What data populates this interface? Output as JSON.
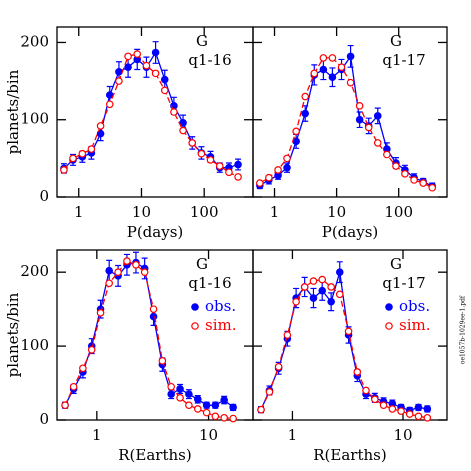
{
  "chart_data": [
    {
      "type": "line",
      "xlabel": "P(days)",
      "ylabel": "planets/bin",
      "annotations": [
        "G",
        "q1-16"
      ],
      "log_x": true,
      "xlim": [
        0.45,
        600
      ],
      "xticks": [
        1,
        10,
        100
      ],
      "ylim": [
        0,
        220
      ],
      "yticks": [
        0,
        100,
        200
      ],
      "ytick_labels": true,
      "legend": false,
      "x": [
        0.58,
        0.81,
        1.14,
        1.59,
        2.23,
        3.12,
        4.37,
        6.12,
        8.56,
        12.0,
        16.8,
        23.5,
        32.9,
        46.0,
        64.5,
        90.3,
        126,
        177,
        248,
        347
      ],
      "series": [
        {
          "color": "#0000ff",
          "marker": "filled",
          "dash": false,
          "values": [
            37,
            48,
            52,
            57,
            82,
            132,
            162,
            168,
            178,
            168,
            187,
            152,
            118,
            96,
            70,
            57,
            52,
            38,
            38,
            42
          ],
          "errors": [
            6,
            7,
            7,
            8,
            9,
            11,
            13,
            13,
            13,
            13,
            14,
            12,
            11,
            10,
            8,
            8,
            7,
            6,
            6,
            7
          ]
        },
        {
          "color": "#ff0000",
          "marker": "open",
          "dash": true,
          "values": [
            35,
            50,
            56,
            62,
            92,
            120,
            150,
            182,
            185,
            170,
            160,
            138,
            110,
            86,
            70,
            56,
            48,
            40,
            32,
            26
          ]
        }
      ]
    },
    {
      "type": "line",
      "xlabel": "P(days)",
      "annotations": [
        "G",
        "q1-17"
      ],
      "log_x": true,
      "xlim": [
        0.45,
        600
      ],
      "xticks": [
        1,
        10,
        100
      ],
      "ylim": [
        0,
        220
      ],
      "yticks": [
        0,
        100,
        200
      ],
      "ytick_labels": false,
      "legend": false,
      "x": [
        0.58,
        0.81,
        1.14,
        1.59,
        2.23,
        3.12,
        4.37,
        6.12,
        8.56,
        12.0,
        16.8,
        23.5,
        32.9,
        46.0,
        64.5,
        90.3,
        126,
        177,
        248,
        347
      ],
      "series": [
        {
          "color": "#0000ff",
          "marker": "filled",
          "dash": false,
          "values": [
            15,
            22,
            28,
            38,
            72,
            108,
            158,
            165,
            155,
            165,
            182,
            100,
            92,
            105,
            62,
            44,
            35,
            25,
            20,
            14
          ],
          "errors": [
            4,
            5,
            5,
            6,
            9,
            10,
            13,
            13,
            12,
            13,
            14,
            10,
            10,
            10,
            8,
            7,
            6,
            5,
            4,
            4
          ]
        },
        {
          "color": "#ff0000",
          "marker": "open",
          "dash": true,
          "values": [
            18,
            25,
            35,
            50,
            85,
            130,
            160,
            180,
            180,
            168,
            148,
            118,
            90,
            70,
            55,
            40,
            30,
            22,
            18,
            12
          ]
        }
      ]
    },
    {
      "type": "line",
      "xlabel": "R(Earths)",
      "ylabel": "planets/bin",
      "annotations": [
        "G",
        "q1-16"
      ],
      "log_x": true,
      "xlim": [
        0.44,
        25
      ],
      "xticks": [
        1,
        10
      ],
      "ylim": [
        0,
        230
      ],
      "yticks": [
        0,
        100,
        200
      ],
      "ytick_labels": true,
      "legend": true,
      "x": [
        0.52,
        0.62,
        0.75,
        0.9,
        1.08,
        1.29,
        1.55,
        1.86,
        2.24,
        2.68,
        3.22,
        3.86,
        4.63,
        5.56,
        6.67,
        8.01,
        9.61,
        11.5,
        13.8,
        16.6
      ],
      "series": [
        {
          "name": "obs.",
          "color": "#0000ff",
          "marker": "filled",
          "dash": false,
          "values": [
            20,
            42,
            65,
            100,
            150,
            202,
            195,
            210,
            213,
            205,
            140,
            75,
            35,
            42,
            35,
            28,
            20,
            20,
            27,
            17
          ],
          "errors": [
            4,
            6,
            8,
            10,
            12,
            14,
            14,
            14,
            14,
            14,
            12,
            9,
            6,
            6,
            6,
            5,
            4,
            4,
            5,
            4
          ]
        },
        {
          "name": "sim.",
          "color": "#ff0000",
          "marker": "open",
          "dash": true,
          "values": [
            20,
            45,
            70,
            95,
            145,
            185,
            200,
            215,
            210,
            200,
            150,
            80,
            45,
            30,
            20,
            15,
            10,
            5,
            3,
            2
          ]
        }
      ]
    },
    {
      "type": "line",
      "xlabel": "R(Earths)",
      "annotations": [
        "G",
        "q1-17"
      ],
      "log_x": true,
      "xlim": [
        0.44,
        25
      ],
      "xticks": [
        1,
        10
      ],
      "ylim": [
        0,
        230
      ],
      "yticks": [
        0,
        100,
        200
      ],
      "ytick_labels": false,
      "legend": true,
      "x": [
        0.52,
        0.62,
        0.75,
        0.9,
        1.08,
        1.29,
        1.55,
        1.86,
        2.24,
        2.68,
        3.22,
        3.86,
        4.63,
        5.56,
        6.67,
        8.01,
        9.61,
        11.5,
        13.8,
        16.6
      ],
      "series": [
        {
          "name": "obs.",
          "color": "#0000ff",
          "marker": "filled",
          "dash": false,
          "values": [
            14,
            40,
            70,
            110,
            165,
            180,
            165,
            175,
            160,
            200,
            115,
            60,
            35,
            30,
            25,
            22,
            17,
            13,
            17,
            15
          ],
          "errors": [
            4,
            6,
            8,
            10,
            13,
            13,
            13,
            13,
            12,
            14,
            11,
            8,
            6,
            6,
            5,
            5,
            4,
            4,
            4,
            4
          ]
        },
        {
          "name": "sim.",
          "color": "#ff0000",
          "marker": "open",
          "dash": true,
          "values": [
            14,
            38,
            72,
            115,
            160,
            180,
            188,
            190,
            180,
            170,
            120,
            65,
            40,
            28,
            20,
            15,
            12,
            8,
            5,
            3
          ]
        }
      ]
    }
  ],
  "side_note": "oe1057b-1029ee-1.pdf"
}
